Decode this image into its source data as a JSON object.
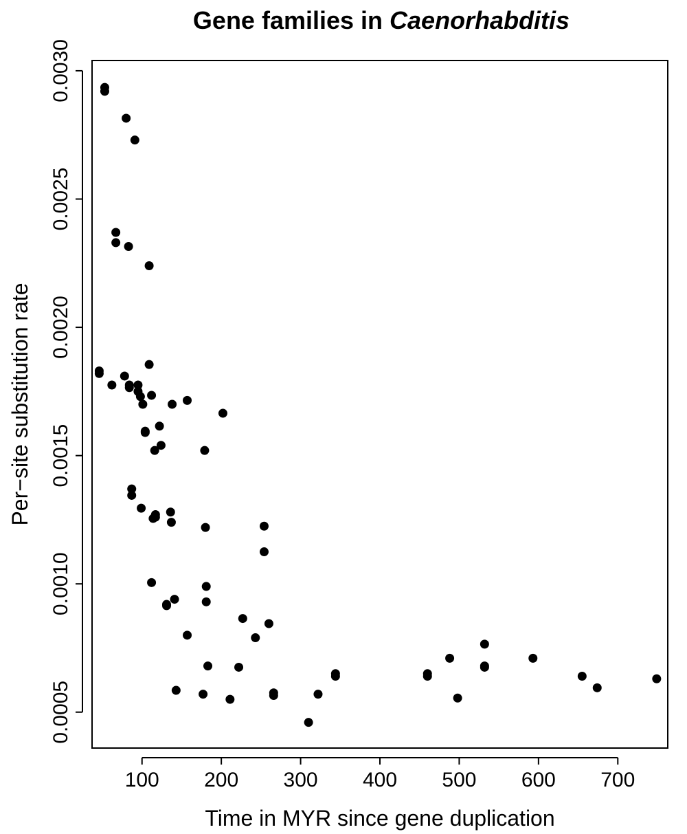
{
  "chart_data": {
    "type": "scatter",
    "title": "Gene families in ",
    "title_italic": "Caenorhabditis",
    "xlabel": "Time in MYR since gene duplication",
    "ylabel": "Per−site substitution rate",
    "xlim": [
      37,
      763
    ],
    "ylim": [
      0.00036,
      0.00304
    ],
    "x_ticks": [
      100,
      200,
      300,
      400,
      500,
      600,
      700
    ],
    "x_tick_labels": [
      "100",
      "200",
      "300",
      "400",
      "500",
      "600",
      "700"
    ],
    "y_ticks": [
      0.0005,
      0.001,
      0.0015,
      0.002,
      0.0025,
      0.003
    ],
    "y_tick_labels": [
      "0.0005",
      "0.0010",
      "0.0015",
      "0.0020",
      "0.0025",
      "0.0030"
    ],
    "grid": false,
    "legend": "none",
    "point_color": "#000000",
    "points": [
      [
        53,
        0.002935
      ],
      [
        53,
        0.00292
      ],
      [
        80,
        0.002815
      ],
      [
        91,
        0.00273
      ],
      [
        67,
        0.00237
      ],
      [
        67,
        0.00233
      ],
      [
        83,
        0.002315
      ],
      [
        109,
        0.00224
      ],
      [
        46,
        0.00183
      ],
      [
        46,
        0.00182
      ],
      [
        62,
        0.001775
      ],
      [
        78,
        0.00181
      ],
      [
        84,
        0.001775
      ],
      [
        84,
        0.001765
      ],
      [
        95,
        0.001775
      ],
      [
        95,
        0.00175
      ],
      [
        98,
        0.00173
      ],
      [
        101,
        0.0017
      ],
      [
        112,
        0.001735
      ],
      [
        109,
        0.001855
      ],
      [
        138,
        0.0017
      ],
      [
        157,
        0.001715
      ],
      [
        202,
        0.001665
      ],
      [
        104,
        0.001595
      ],
      [
        104,
        0.00159
      ],
      [
        122,
        0.001615
      ],
      [
        124,
        0.00154
      ],
      [
        116,
        0.00152
      ],
      [
        179,
        0.00152
      ],
      [
        87,
        0.00137
      ],
      [
        87,
        0.001345
      ],
      [
        99,
        0.001295
      ],
      [
        117,
        0.00127
      ],
      [
        117,
        0.00126
      ],
      [
        114,
        0.001255
      ],
      [
        136,
        0.00128
      ],
      [
        137,
        0.00124
      ],
      [
        180,
        0.00122
      ],
      [
        254,
        0.001225
      ],
      [
        254,
        0.001125
      ],
      [
        112,
        0.001005
      ],
      [
        181,
        0.00099
      ],
      [
        141,
        0.00094
      ],
      [
        131,
        0.00092
      ],
      [
        131,
        0.000915
      ],
      [
        181,
        0.00093
      ],
      [
        227,
        0.000865
      ],
      [
        260,
        0.000845
      ],
      [
        157,
        0.0008
      ],
      [
        243,
        0.00079
      ],
      [
        532,
        0.000765
      ],
      [
        488,
        0.00071
      ],
      [
        593,
        0.00071
      ],
      [
        532,
        0.00068
      ],
      [
        532,
        0.000675
      ],
      [
        183,
        0.00068
      ],
      [
        222,
        0.000675
      ],
      [
        344,
        0.00065
      ],
      [
        344,
        0.00064
      ],
      [
        460,
        0.00065
      ],
      [
        460,
        0.00064
      ],
      [
        655,
        0.00064
      ],
      [
        749,
        0.00063
      ],
      [
        674,
        0.000595
      ],
      [
        143,
        0.000585
      ],
      [
        177,
        0.00057
      ],
      [
        211,
        0.00055
      ],
      [
        266,
        0.000575
      ],
      [
        266,
        0.000565
      ],
      [
        322,
        0.00057
      ],
      [
        498,
        0.000555
      ],
      [
        310,
        0.00046
      ]
    ]
  }
}
